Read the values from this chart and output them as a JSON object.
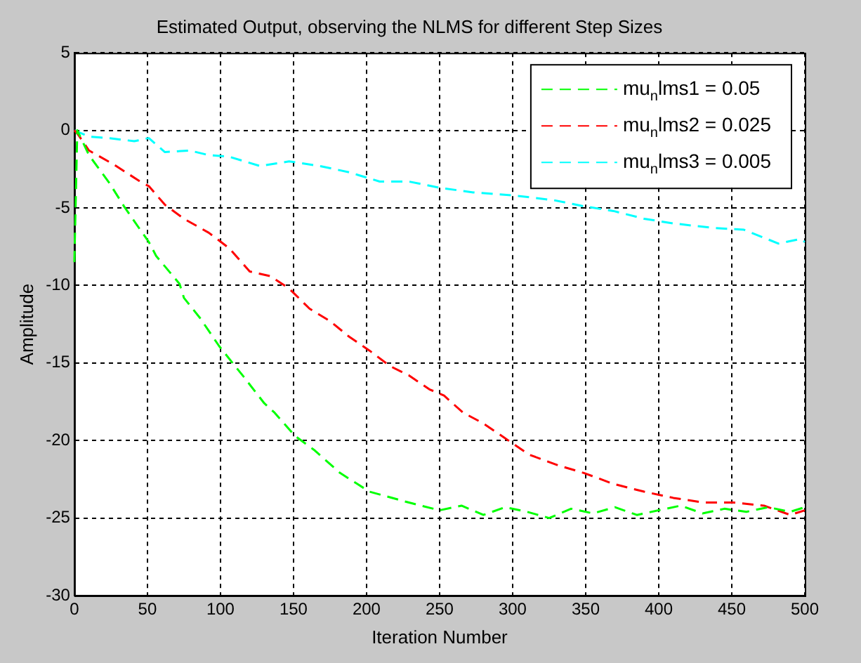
{
  "chart_data": {
    "type": "line",
    "title": "Estimated Output, observing the NLMS for different Step Sizes",
    "xlabel": "Iteration Number",
    "ylabel": "Amplitude",
    "xlim": [
      0,
      500
    ],
    "xticks": [
      0,
      50,
      100,
      150,
      200,
      250,
      300,
      350,
      400,
      450,
      500
    ],
    "ylim": [
      -30,
      5
    ],
    "yticks": [
      -30,
      -25,
      -20,
      -15,
      -10,
      -5,
      0,
      5
    ],
    "grid": true,
    "legend": "top right",
    "line_style": "dashed",
    "marker": "none",
    "series": [
      {
        "name": "mu$_{n}$lms1 = 0.05",
        "color": "#00ff00",
        "x": [
          0,
          2,
          10,
          24,
          34,
          45,
          51,
          56,
          72,
          75,
          86,
          99,
          110,
          116,
          130,
          137,
          151,
          164,
          182,
          202,
          229,
          250,
          265,
          280,
          295,
          310,
          325,
          340,
          355,
          370,
          385,
          400,
          415,
          430,
          445,
          460,
          475,
          490,
          500
        ],
        "values": [
          -8.5,
          0,
          -1.6,
          -3.4,
          -4.9,
          -6.4,
          -7.2,
          -8.1,
          -9.9,
          -10.8,
          -12.1,
          -13.9,
          -15.2,
          -15.9,
          -17.6,
          -18.2,
          -19.7,
          -20.6,
          -22.1,
          -23.3,
          -24,
          -24.5,
          -24.2,
          -24.8,
          -24.3,
          -24.6,
          -25,
          -24.4,
          -24.7,
          -24.3,
          -24.8,
          -24.5,
          -24.2,
          -24.7,
          -24.4,
          -24.6,
          -24.3,
          -24.6,
          -24.3
        ]
      },
      {
        "name": "mu$_{n}$lms2 = 0.025",
        "color": "#ff0000",
        "x": [
          0,
          2,
          10,
          27,
          45,
          51,
          62,
          75,
          92,
          106,
          120,
          134,
          147,
          161,
          175,
          188,
          202,
          216,
          229,
          243,
          253,
          266,
          280,
          294,
          311,
          331,
          349,
          369,
          390,
          410,
          431,
          451,
          472,
          490,
          500
        ],
        "values": [
          0,
          -0.2,
          -1.3,
          -2.2,
          -3.3,
          -3.6,
          -4.8,
          -5.7,
          -6.6,
          -7.6,
          -9.1,
          -9.4,
          -10.2,
          -11.5,
          -12.3,
          -13.3,
          -14.2,
          -15.2,
          -15.8,
          -16.7,
          -17.1,
          -18.2,
          -18.9,
          -19.8,
          -20.9,
          -21.6,
          -22.1,
          -22.8,
          -23.3,
          -23.7,
          -24,
          -24,
          -24.2,
          -24.8,
          -24.5
        ]
      },
      {
        "name": "mu$_{n}$lms3 = 0.005",
        "color": "#00ffff",
        "x": [
          0,
          10,
          24,
          41,
          51,
          62,
          79,
          92,
          106,
          127,
          147,
          168,
          188,
          209,
          229,
          250,
          273,
          301,
          328,
          349,
          369,
          390,
          410,
          438,
          458,
          482,
          497,
          500
        ],
        "values": [
          0,
          -0.4,
          -0.5,
          -0.7,
          -0.5,
          -1.4,
          -1.3,
          -1.6,
          -1.7,
          -2.3,
          -2,
          -2.3,
          -2.7,
          -3.3,
          -3.3,
          -3.7,
          -4,
          -4.2,
          -4.5,
          -4.9,
          -5.2,
          -5.7,
          -6,
          -6.3,
          -6.4,
          -7.3,
          -7,
          -7.2
        ]
      }
    ]
  }
}
